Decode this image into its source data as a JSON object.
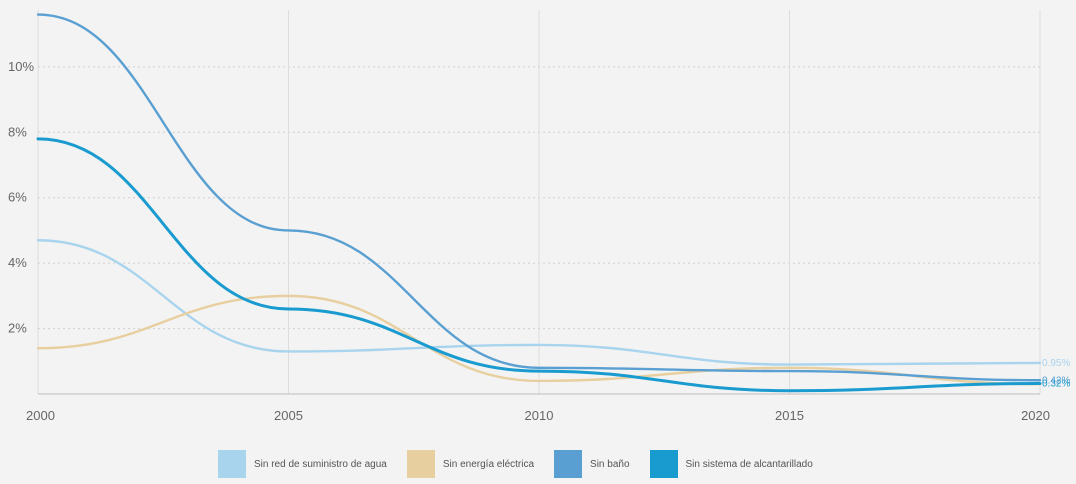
{
  "chart_data": {
    "type": "line",
    "title": "",
    "xlabel": "",
    "ylabel": "",
    "x_ticks": [
      "2000",
      "2005",
      "2010",
      "2015",
      "2020"
    ],
    "y_ticks": [
      "2%",
      "4%",
      "6%",
      "8%",
      "10%"
    ],
    "xlim": [
      2000,
      2020
    ],
    "ylim": [
      0,
      11.8
    ],
    "grid": "horizontal dotted",
    "legend_position": "bottom",
    "series": [
      {
        "name": "Sin red de suministro de agua",
        "color": "#a8d4ee",
        "end_label": "0.95%",
        "x": [
          2000,
          2005,
          2010,
          2015,
          2020
        ],
        "values": [
          4.7,
          1.3,
          1.5,
          0.9,
          0.95
        ]
      },
      {
        "name": "Sin energía eléctrica",
        "color": "#e8cfa0",
        "end_label": "",
        "x": [
          2000,
          2005,
          2010,
          2015,
          2020
        ],
        "values": [
          1.4,
          3.0,
          0.4,
          0.8,
          0.3
        ]
      },
      {
        "name": "Sin baño",
        "color": "#5a9fd2",
        "end_label": "0.42%",
        "x": [
          2000,
          2005,
          2010,
          2015,
          2020
        ],
        "values": [
          11.6,
          5.0,
          0.8,
          0.7,
          0.42
        ]
      },
      {
        "name": "Sin sistema de alcantarillado",
        "color": "#1a9bd0",
        "end_label": "0.32%",
        "x": [
          2000,
          2005,
          2010,
          2015,
          2020
        ],
        "values": [
          7.8,
          2.6,
          0.7,
          0.1,
          0.32
        ]
      }
    ]
  }
}
